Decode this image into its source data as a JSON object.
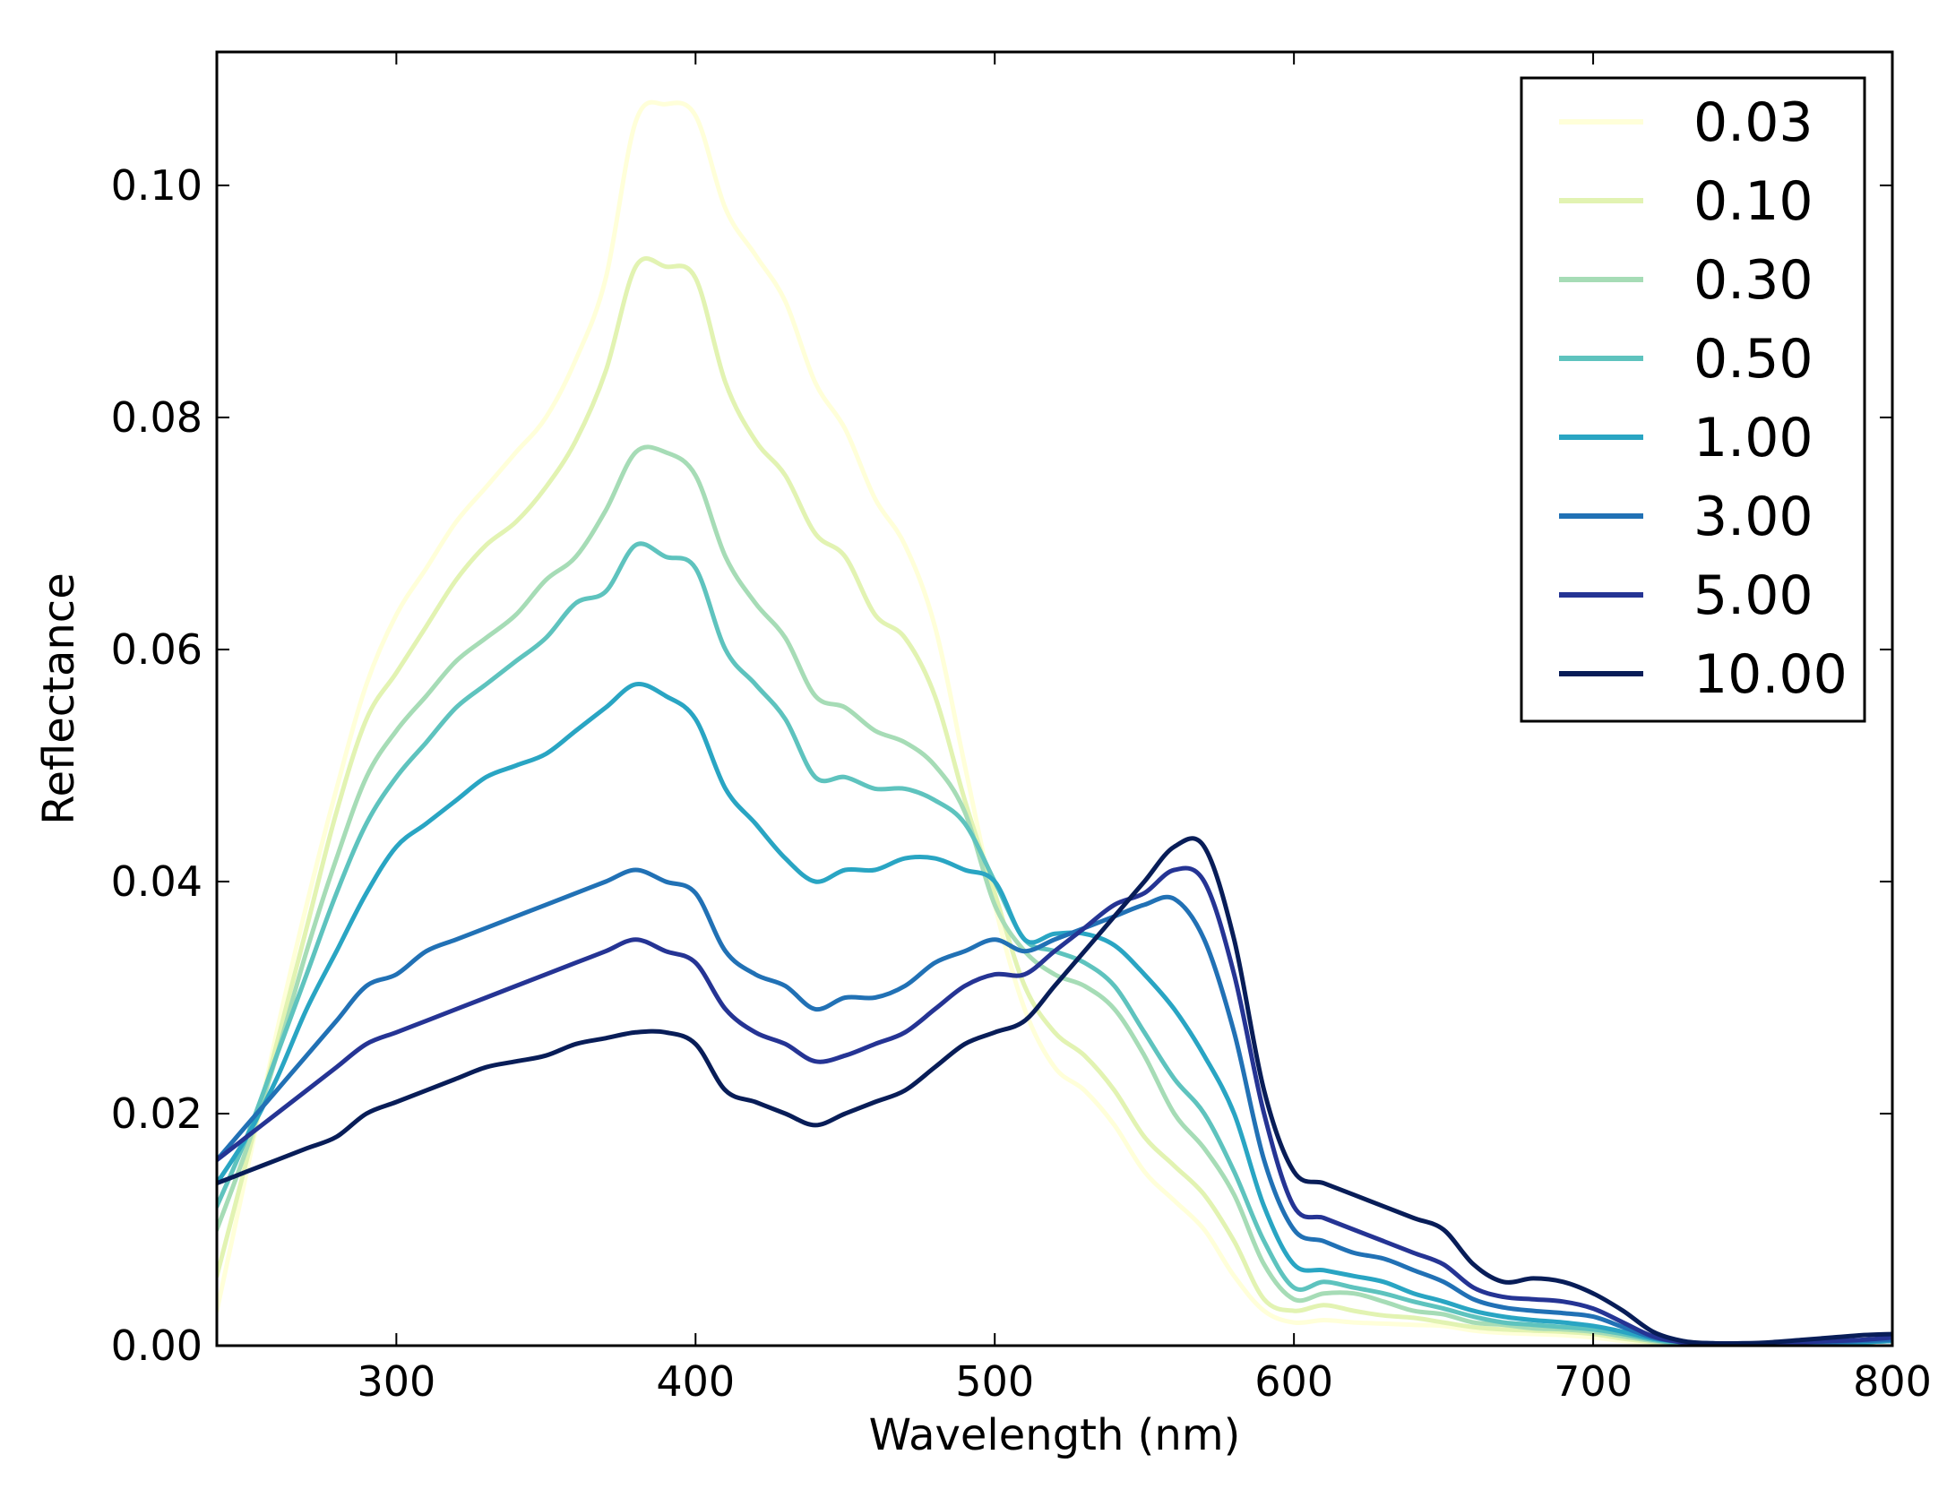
{
  "chart_data": {
    "type": "line",
    "title": "",
    "xlabel": "Wavelength (nm)",
    "ylabel": "Reflectance",
    "xlim": [
      240,
      800
    ],
    "ylim": [
      0.0,
      0.1115
    ],
    "xticks": [
      300,
      400,
      500,
      600,
      700,
      800
    ],
    "xtick_labels": [
      "300",
      "400",
      "500",
      "600",
      "700",
      "800"
    ],
    "yticks": [
      0.0,
      0.02,
      0.04,
      0.06,
      0.08,
      0.1
    ],
    "ytick_labels": [
      "0.00",
      "0.02",
      "0.04",
      "0.06",
      "0.08",
      "0.10"
    ],
    "grid": false,
    "legend_position": "top-right",
    "x": [
      240,
      250,
      260,
      270,
      280,
      290,
      300,
      310,
      320,
      330,
      340,
      350,
      360,
      370,
      380,
      390,
      400,
      410,
      420,
      430,
      440,
      450,
      460,
      470,
      480,
      490,
      500,
      510,
      520,
      530,
      540,
      550,
      560,
      570,
      580,
      590,
      600,
      610,
      620,
      630,
      640,
      650,
      660,
      670,
      680,
      690,
      700,
      710,
      720,
      730,
      740,
      750,
      760,
      770,
      780,
      790,
      800
    ],
    "series": [
      {
        "name": "0.03",
        "color": "#ffffd9",
        "values": [
          0.003,
          0.015,
          0.027,
          0.038,
          0.048,
          0.057,
          0.063,
          0.067,
          0.071,
          0.074,
          0.077,
          0.08,
          0.085,
          0.092,
          0.1055,
          0.107,
          0.106,
          0.098,
          0.094,
          0.09,
          0.083,
          0.079,
          0.073,
          0.069,
          0.062,
          0.05,
          0.038,
          0.029,
          0.024,
          0.022,
          0.019,
          0.015,
          0.0125,
          0.01,
          0.006,
          0.003,
          0.002,
          0.0022,
          0.002,
          0.0019,
          0.0018,
          0.0017,
          0.0013,
          0.0011,
          0.001,
          0.0009,
          0.0007,
          0.0004,
          0.0002,
          0.0001,
          5e-05,
          5e-05,
          8e-05,
          0.0001,
          0.0002,
          0.0003,
          0.0004
        ]
      },
      {
        "name": "0.10",
        "color": "#e2f3b2",
        "values": [
          0.006,
          0.016,
          0.026,
          0.036,
          0.046,
          0.054,
          0.058,
          0.062,
          0.066,
          0.069,
          0.071,
          0.074,
          0.078,
          0.084,
          0.093,
          0.093,
          0.092,
          0.083,
          0.078,
          0.075,
          0.07,
          0.068,
          0.063,
          0.061,
          0.056,
          0.047,
          0.039,
          0.031,
          0.027,
          0.025,
          0.022,
          0.018,
          0.0155,
          0.013,
          0.009,
          0.004,
          0.003,
          0.0035,
          0.003,
          0.0026,
          0.0024,
          0.002,
          0.0016,
          0.0014,
          0.0013,
          0.0012,
          0.001,
          0.0006,
          0.0003,
          0.0001,
          5e-05,
          5e-05,
          8e-05,
          0.0001,
          0.0002,
          0.0003,
          0.0004
        ]
      },
      {
        "name": "0.30",
        "color": "#a6dcb6",
        "values": [
          0.01,
          0.017,
          0.025,
          0.034,
          0.042,
          0.049,
          0.053,
          0.056,
          0.059,
          0.061,
          0.063,
          0.066,
          0.068,
          0.072,
          0.077,
          0.077,
          0.075,
          0.068,
          0.064,
          0.061,
          0.056,
          0.055,
          0.053,
          0.052,
          0.05,
          0.046,
          0.038,
          0.034,
          0.032,
          0.031,
          0.029,
          0.025,
          0.02,
          0.017,
          0.013,
          0.007,
          0.004,
          0.0045,
          0.0045,
          0.0038,
          0.003,
          0.0027,
          0.002,
          0.0018,
          0.0015,
          0.0014,
          0.0012,
          0.0008,
          0.0004,
          0.0002,
          0.0001,
          0.0001,
          0.0001,
          0.0002,
          0.0002,
          0.0003,
          0.0004
        ]
      },
      {
        "name": "0.50",
        "color": "#5ec3be",
        "values": [
          0.012,
          0.018,
          0.025,
          0.032,
          0.039,
          0.045,
          0.049,
          0.052,
          0.055,
          0.057,
          0.059,
          0.061,
          0.064,
          0.065,
          0.069,
          0.068,
          0.067,
          0.06,
          0.057,
          0.054,
          0.049,
          0.049,
          0.048,
          0.048,
          0.047,
          0.045,
          0.04,
          0.035,
          0.034,
          0.033,
          0.031,
          0.027,
          0.023,
          0.02,
          0.015,
          0.009,
          0.005,
          0.0055,
          0.005,
          0.0045,
          0.0038,
          0.0032,
          0.0025,
          0.002,
          0.0018,
          0.0016,
          0.0014,
          0.001,
          0.0005,
          0.0002,
          0.0001,
          0.0001,
          0.0001,
          0.0002,
          0.0002,
          0.0003,
          0.0004
        ]
      },
      {
        "name": "1.00",
        "color": "#29a5c3",
        "values": [
          0.014,
          0.018,
          0.023,
          0.029,
          0.034,
          0.039,
          0.043,
          0.045,
          0.047,
          0.049,
          0.05,
          0.051,
          0.053,
          0.055,
          0.057,
          0.056,
          0.054,
          0.048,
          0.045,
          0.042,
          0.04,
          0.041,
          0.041,
          0.042,
          0.042,
          0.041,
          0.04,
          0.035,
          0.0355,
          0.0355,
          0.0345,
          0.032,
          0.029,
          0.025,
          0.02,
          0.012,
          0.007,
          0.0065,
          0.006,
          0.0055,
          0.0045,
          0.0038,
          0.003,
          0.0025,
          0.0022,
          0.002,
          0.0017,
          0.0012,
          0.0006,
          0.0003,
          0.0001,
          0.0001,
          0.0001,
          0.0002,
          0.0002,
          0.0003,
          0.0004
        ]
      },
      {
        "name": "3.00",
        "color": "#2171b5",
        "values": [
          0.016,
          0.019,
          0.022,
          0.025,
          0.028,
          0.031,
          0.032,
          0.034,
          0.035,
          0.036,
          0.037,
          0.038,
          0.039,
          0.04,
          0.041,
          0.04,
          0.039,
          0.034,
          0.032,
          0.031,
          0.029,
          0.03,
          0.03,
          0.031,
          0.033,
          0.034,
          0.035,
          0.034,
          0.035,
          0.036,
          0.037,
          0.038,
          0.0385,
          0.035,
          0.027,
          0.016,
          0.01,
          0.009,
          0.008,
          0.0075,
          0.0065,
          0.0055,
          0.004,
          0.0033,
          0.003,
          0.0028,
          0.0025,
          0.0016,
          0.0007,
          0.0003,
          0.0002,
          0.0001,
          0.0001,
          0.0002,
          0.0003,
          0.0004,
          0.0005
        ]
      },
      {
        "name": "5.00",
        "color": "#253494",
        "values": [
          0.016,
          0.018,
          0.02,
          0.022,
          0.024,
          0.026,
          0.027,
          0.028,
          0.029,
          0.03,
          0.031,
          0.032,
          0.033,
          0.034,
          0.035,
          0.034,
          0.033,
          0.029,
          0.027,
          0.026,
          0.0245,
          0.025,
          0.026,
          0.027,
          0.029,
          0.031,
          0.032,
          0.032,
          0.034,
          0.036,
          0.038,
          0.039,
          0.041,
          0.04,
          0.032,
          0.02,
          0.012,
          0.011,
          0.01,
          0.009,
          0.008,
          0.007,
          0.005,
          0.0042,
          0.004,
          0.0038,
          0.0032,
          0.002,
          0.0008,
          0.0003,
          0.0002,
          0.0002,
          0.0002,
          0.0003,
          0.0004,
          0.0005,
          0.0007
        ]
      },
      {
        "name": "10.00",
        "color": "#081d58",
        "values": [
          0.014,
          0.015,
          0.016,
          0.017,
          0.018,
          0.02,
          0.021,
          0.022,
          0.023,
          0.024,
          0.0245,
          0.025,
          0.026,
          0.0265,
          0.027,
          0.027,
          0.026,
          0.022,
          0.021,
          0.02,
          0.019,
          0.02,
          0.021,
          0.022,
          0.024,
          0.026,
          0.027,
          0.028,
          0.031,
          0.034,
          0.037,
          0.04,
          0.043,
          0.043,
          0.035,
          0.022,
          0.015,
          0.014,
          0.013,
          0.012,
          0.011,
          0.01,
          0.007,
          0.0055,
          0.0058,
          0.0055,
          0.0045,
          0.003,
          0.0012,
          0.0004,
          0.0002,
          0.0002,
          0.0003,
          0.0005,
          0.0007,
          0.0009,
          0.001
        ]
      }
    ]
  }
}
